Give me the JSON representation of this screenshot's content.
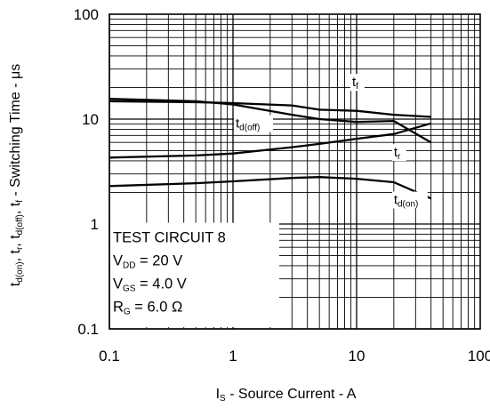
{
  "chart_data": {
    "type": "line",
    "title": "",
    "xlabel": {
      "main": "I",
      "sub": "S",
      "rest": " - Source Current - A"
    },
    "ylabel": {
      "parts": [
        {
          "t": "t",
          "s": "d(on)"
        },
        {
          "t": ", t",
          "s": "r"
        },
        {
          "t": ", t",
          "s": "d(off)"
        },
        {
          "t": ", t",
          "s": "f"
        },
        {
          "t": " - Switching Time - μs",
          "s": ""
        }
      ]
    },
    "x_scale": "log",
    "y_scale": "log",
    "xlim": [
      0.1,
      100
    ],
    "ylim": [
      0.1,
      100
    ],
    "x_ticks": [
      "0.1",
      "1",
      "10",
      "100"
    ],
    "y_ticks": [
      "0.1",
      "1",
      "10",
      "100"
    ],
    "grid": true,
    "series": [
      {
        "name": "tf",
        "label_main": "t",
        "label_sub": "f",
        "points": [
          [
            0.1,
            14.8
          ],
          [
            0.5,
            14.5
          ],
          [
            1,
            14.2
          ],
          [
            3,
            13.5
          ],
          [
            5,
            12.3
          ],
          [
            10,
            12.0
          ],
          [
            20,
            11.0
          ],
          [
            40,
            10.5
          ]
        ]
      },
      {
        "name": "td(off)",
        "label_main": "t",
        "label_sub": "d(off)",
        "points": [
          [
            0.1,
            15.6
          ],
          [
            0.5,
            14.8
          ],
          [
            1,
            13.8
          ],
          [
            3,
            11.0
          ],
          [
            5,
            10.0
          ],
          [
            10,
            9.4
          ],
          [
            20,
            9.6
          ],
          [
            40,
            6.0
          ]
        ]
      },
      {
        "name": "tr",
        "label_main": "t",
        "label_sub": "r",
        "points": [
          [
            0.1,
            4.3
          ],
          [
            0.5,
            4.5
          ],
          [
            1,
            4.7
          ],
          [
            3,
            5.4
          ],
          [
            5,
            5.8
          ],
          [
            10,
            6.5
          ],
          [
            20,
            7.2
          ],
          [
            40,
            9.1
          ]
        ]
      },
      {
        "name": "td(on)",
        "label_main": "t",
        "label_sub": "d(on)",
        "points": [
          [
            0.1,
            2.3
          ],
          [
            0.5,
            2.45
          ],
          [
            1,
            2.55
          ],
          [
            3,
            2.75
          ],
          [
            5,
            2.8
          ],
          [
            10,
            2.7
          ],
          [
            20,
            2.5
          ],
          [
            40,
            1.75
          ]
        ]
      }
    ],
    "annotation": {
      "lines": [
        {
          "t": "TEST CIRCUIT 8",
          "s": "",
          "r": ""
        },
        {
          "t": "V",
          "s": "DD",
          "r": " = 20 V"
        },
        {
          "t": "V",
          "s": "GS",
          "r": " = 4.0 V"
        },
        {
          "t": "R",
          "s": "G",
          "r": " = 6.0 Ω"
        }
      ]
    }
  }
}
